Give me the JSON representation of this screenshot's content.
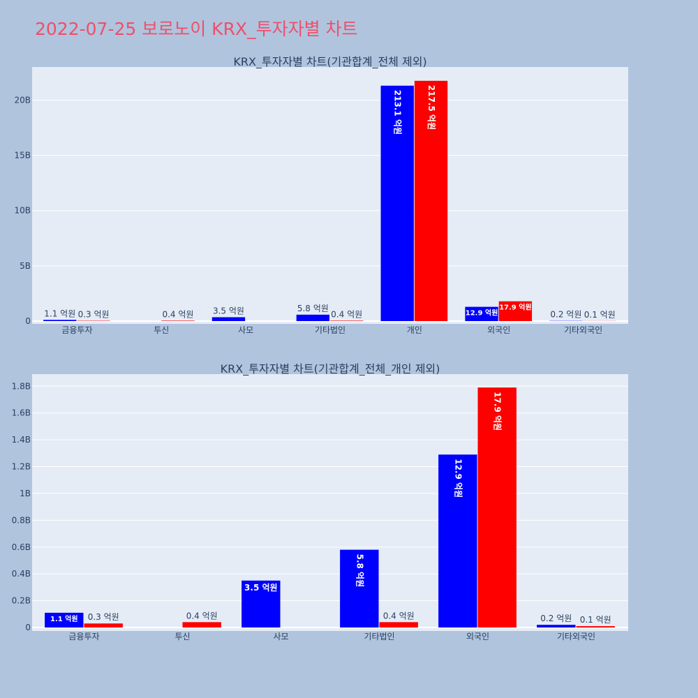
{
  "title": "2022-07-25 보로노이 KRX_투자자별 차트",
  "colors": {
    "buy": "#0000ff",
    "sell": "#ff0000",
    "title": "#ef4f6a",
    "background": "#b0c4de",
    "plot": "#e5ecf6"
  },
  "chart_data": [
    {
      "type": "bar",
      "title": "KRX_투자자별 차트(기관합계_전체 제외)",
      "categories": [
        "금융투자",
        "투신",
        "사모",
        "기타법인",
        "개인",
        "외국인",
        "기타외국인"
      ],
      "series": [
        {
          "color": "#0000ff",
          "values": [
            110000000,
            0,
            350000000,
            580000000,
            21310000000,
            1290000000,
            20000000
          ],
          "labels": [
            "1.1 억원",
            "",
            "3.5 억원",
            "5.8 억원",
            "213.1 억원",
            "12.9 억원",
            "0.2 억원"
          ]
        },
        {
          "color": "#ff0000",
          "values": [
            30000000,
            40000000,
            0,
            40000000,
            21750000000,
            1790000000,
            10000000
          ],
          "labels": [
            "0.3 억원",
            "0.4 억원",
            "",
            "0.4 억원",
            "217.5 억원",
            "17.9 억원",
            "0.1 억원"
          ]
        }
      ],
      "ylim": [
        0,
        23000000000
      ],
      "yticks": [
        0,
        5000000000,
        10000000000,
        15000000000,
        20000000000
      ],
      "ytick_labels": [
        "0",
        "5B",
        "10B",
        "15B",
        "20B"
      ],
      "grid": true
    },
    {
      "type": "bar",
      "title": "KRX_투자자별 차트(기관합계_전체_개인 제외)",
      "categories": [
        "금융투자",
        "투신",
        "사모",
        "기타법인",
        "외국인",
        "기타외국인"
      ],
      "series": [
        {
          "color": "#0000ff",
          "values": [
            110000000,
            0,
            350000000,
            580000000,
            1290000000,
            20000000
          ],
          "labels": [
            "1.1 억원",
            "",
            "3.5 억원",
            "5.8 억원",
            "12.9 억원",
            "0.2 억원"
          ]
        },
        {
          "color": "#ff0000",
          "values": [
            30000000,
            40000000,
            0,
            40000000,
            1790000000,
            10000000
          ],
          "labels": [
            "0.3 억원",
            "0.4 억원",
            "",
            "0.4 억원",
            "17.9 억원",
            "0.1 억원"
          ]
        }
      ],
      "ylim": [
        0,
        1890000000
      ],
      "yticks": [
        0,
        200000000,
        400000000,
        600000000,
        800000000,
        1000000000,
        1200000000,
        1400000000,
        1600000000,
        1800000000
      ],
      "ytick_labels": [
        "0",
        "0.2B",
        "0.4B",
        "0.6B",
        "0.8B",
        "1B",
        "1.2B",
        "1.4B",
        "1.6B",
        "1.8B"
      ],
      "grid": true
    }
  ]
}
